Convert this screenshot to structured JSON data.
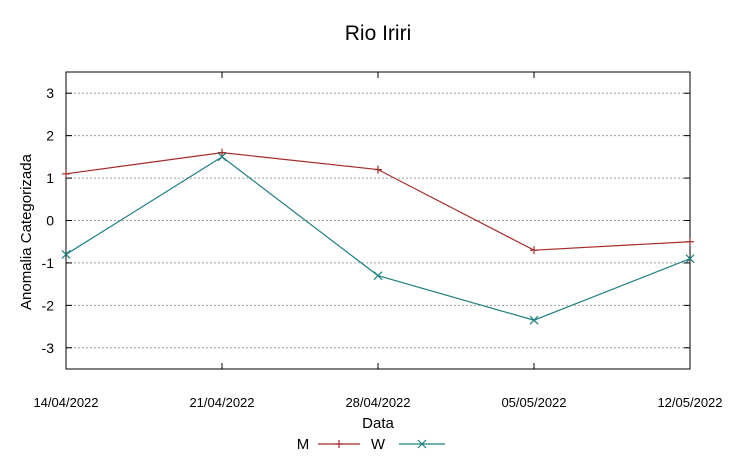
{
  "chart_data": {
    "type": "line",
    "title": "Rio Iriri",
    "xlabel": "Data",
    "ylabel": "Anomalia Categorizada",
    "categories": [
      "14/04/2022",
      "21/04/2022",
      "28/04/2022",
      "05/05/2022",
      "12/05/2022"
    ],
    "yticks": [
      "3",
      "2",
      "1",
      "0",
      "-1",
      "-2",
      "-3"
    ],
    "ylim": [
      -3.5,
      3.5
    ],
    "grid": true,
    "legend_position": "bottom-center",
    "series": [
      {
        "name": "M",
        "values": [
          1.1,
          1.6,
          1.2,
          -0.7,
          -0.5
        ],
        "color": "#a52a2a",
        "marker": "plus"
      },
      {
        "name": "W",
        "values": [
          -0.8,
          1.5,
          -1.3,
          -2.35,
          -0.9
        ],
        "color": "#1f7f7f",
        "marker": "cross"
      }
    ]
  }
}
